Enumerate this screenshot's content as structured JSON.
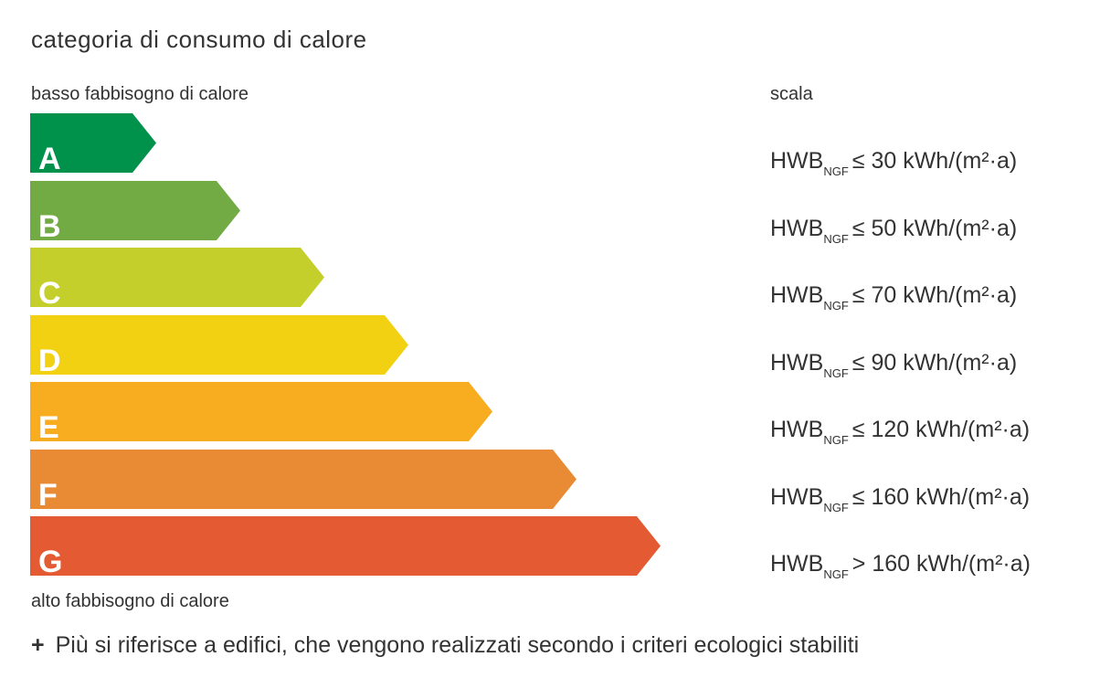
{
  "title": "categoria di consumo di calore",
  "label_top": "basso fabbisogno di calore",
  "label_bottom": "alto fabbisogno di calore",
  "scale_heading": "scala",
  "categories": [
    {
      "letter": "A",
      "color": "#00924a",
      "prefix": "HWB",
      "sub": "NGF",
      "limit": "≤ 30 kWh/(m²·a)"
    },
    {
      "letter": "B",
      "color": "#72aa44",
      "prefix": "HWB",
      "sub": "NGF",
      "limit": "≤ 50 kWh/(m²·a)"
    },
    {
      "letter": "C",
      "color": "#c5cf2c",
      "prefix": "HWB",
      "sub": "NGF",
      "limit": "≤ 70 kWh/(m²·a)"
    },
    {
      "letter": "D",
      "color": "#f2d012",
      "prefix": "HWB",
      "sub": "NGF",
      "limit": "≤ 90 kWh/(m²·a)"
    },
    {
      "letter": "E",
      "color": "#f8ad20",
      "prefix": "HWB",
      "sub": "NGF",
      "limit": "≤ 120 kWh/(m²·a)"
    },
    {
      "letter": "F",
      "color": "#e98a34",
      "prefix": "HWB",
      "sub": "NGF",
      "limit": "≤ 160 kWh/(m²·a)"
    },
    {
      "letter": "G",
      "color": "#e45a32",
      "prefix": "HWB",
      "sub": "NGF",
      "limit": "> 160 kWh/(m²·a)"
    }
  ],
  "footnote": {
    "symbol": "+",
    "text": "Più  si riferisce a edifici, che vengono realizzati secondo i criteri ecologici stabiliti"
  }
}
